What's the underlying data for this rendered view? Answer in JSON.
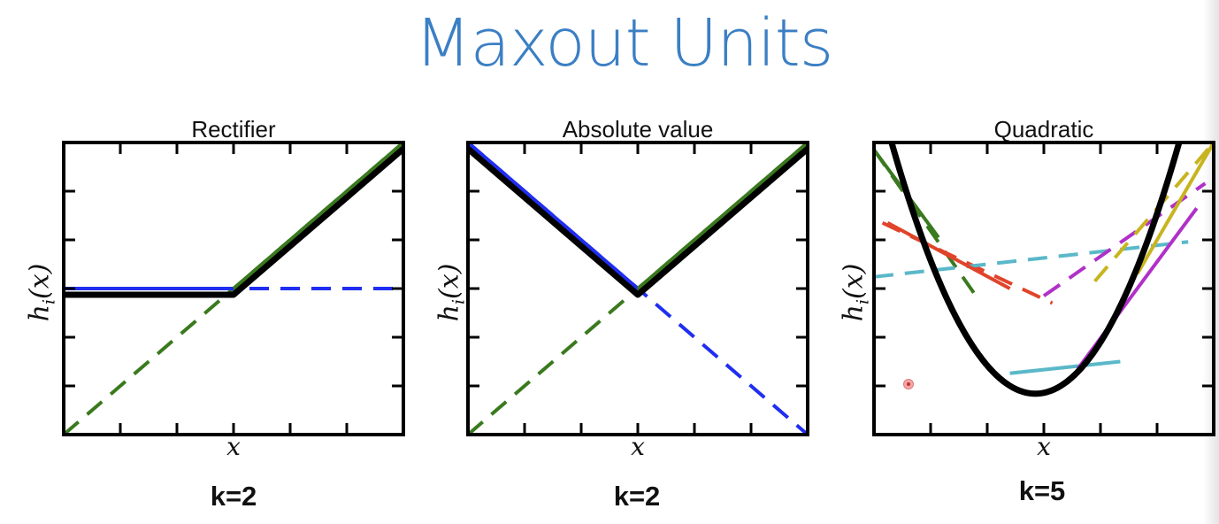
{
  "title": "Maxout Units",
  "panels": [
    {
      "id": "rectifier",
      "title": "Rectifier",
      "ylabel": "h",
      "ylabel_sub": "i",
      "ylabel_arg": "(x)",
      "xlabel": "x",
      "k_label": "k=2",
      "pieces": [
        {
          "color": "#1f2ef0",
          "points": [
            [
              -1,
              0
            ],
            [
              1,
              0
            ]
          ]
        },
        {
          "color": "#3a7a1e",
          "points": [
            [
              -1,
              -1
            ],
            [
              1,
              1
            ]
          ]
        }
      ],
      "max_line": {
        "color": "#000000",
        "points": [
          [
            -1,
            0
          ],
          [
            0,
            0
          ],
          [
            1,
            1
          ]
        ]
      }
    },
    {
      "id": "absolute",
      "title": "Absolute value",
      "ylabel": "h",
      "ylabel_sub": "i",
      "ylabel_arg": "(x)",
      "xlabel": "x",
      "k_label": "k=2",
      "pieces": [
        {
          "color": "#1f2ef0",
          "points": [
            [
              -1,
              1
            ],
            [
              1,
              -1
            ]
          ]
        },
        {
          "color": "#3a7a1e",
          "points": [
            [
              -1,
              -1
            ],
            [
              1,
              1
            ]
          ]
        }
      ],
      "max_line": {
        "color": "#000000",
        "points": [
          [
            -1,
            1
          ],
          [
            0,
            0
          ],
          [
            1,
            1
          ]
        ]
      }
    },
    {
      "id": "quadratic",
      "title": "Quadratic",
      "ylabel": "h",
      "ylabel_sub": "i",
      "ylabel_arg": "(x)",
      "xlabel": "x",
      "k_label": "k=5",
      "pieces": [
        {
          "color": "#3a7a1e",
          "points": [
            [
              -1,
              0.95
            ],
            [
              -0.4,
              -0.05
            ]
          ]
        },
        {
          "color": "#e0442a",
          "points": [
            [
              -0.95,
              0.45
            ],
            [
              0.05,
              -0.1
            ]
          ]
        },
        {
          "color": "#5ab8c9",
          "points": [
            [
              -1,
              0.08
            ],
            [
              0.85,
              0.32
            ]
          ]
        },
        {
          "color": "#b030c8",
          "points": [
            [
              0,
              -0.05
            ],
            [
              0.95,
              0.72
            ]
          ]
        },
        {
          "color": "#c8b41e",
          "points": [
            [
              0.3,
              0.05
            ],
            [
              1,
              1
            ]
          ]
        }
      ],
      "max_line": {
        "color": "#000000",
        "curve": "parabola"
      }
    }
  ]
}
